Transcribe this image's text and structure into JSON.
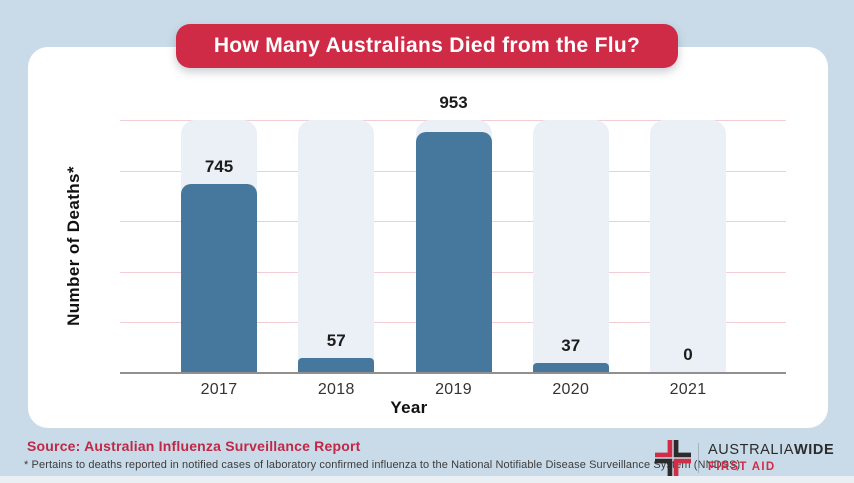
{
  "page": {
    "background_color": "#c9dbe8",
    "card_color": "#ffffff"
  },
  "title": {
    "text": "How Many Australians Died from the Flu?",
    "background_color": "#d02b46",
    "text_color": "#ffffff"
  },
  "chart_data": {
    "type": "bar",
    "title": "How Many Australians Died from the Flu?",
    "categories": [
      "2017",
      "2018",
      "2019",
      "2020",
      "2021"
    ],
    "values": [
      745,
      57,
      953,
      37,
      0
    ],
    "value_labels": [
      "745",
      "57",
      "953",
      "37",
      "0"
    ],
    "xlabel": "Year",
    "ylabel": "Number of Deaths*",
    "ylim": [
      0,
      1000
    ],
    "gridline_step": 200,
    "grid": true,
    "legend": "none",
    "bar_color": "#46789e",
    "track_color": "#eaf0f5",
    "gridline_color": "#f2cdd3",
    "axis_color": "#909090"
  },
  "footer": {
    "source": "Source: Australian Influenza Surveillance Report",
    "source_color": "#c22746",
    "footnote": "* Pertains to deaths reported in notified cases of laboratory confirmed influenza to the National Notifiable Disease Surveillance System (NNDSS)"
  },
  "logo": {
    "brand_top_regular": "AUSTRALIA",
    "brand_top_bold": "WIDE",
    "brand_bottom": "FIRST AID",
    "cross_red": "#d22c46",
    "cross_dark": "#2b2b2b",
    "brand_bottom_color": "#d22c46"
  }
}
